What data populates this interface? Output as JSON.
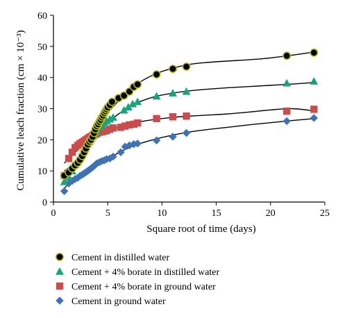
{
  "chart_data": {
    "type": "scatter",
    "title": "",
    "xlabel": "Square root of time (days)",
    "ylabel": "Cumulative leach fraction (cm × 10⁻³)",
    "xlim": [
      0,
      25
    ],
    "ylim": [
      0,
      60
    ],
    "x_ticks": [
      "0",
      "5",
      "10",
      "15",
      "20",
      "25"
    ],
    "y_ticks": [
      "0",
      "10",
      "20",
      "30",
      "40",
      "50",
      "60"
    ],
    "grid": false,
    "legend_position": "bottom",
    "series": [
      {
        "name": "Cement in distilled water",
        "marker": "circle",
        "color": "#000000",
        "edge_color": "#b5bd1f",
        "x": [
          1.0,
          1.41,
          1.73,
          2.0,
          2.24,
          2.45,
          2.65,
          2.83,
          3.0,
          3.16,
          3.32,
          3.46,
          3.61,
          3.74,
          3.87,
          4.0,
          4.12,
          4.24,
          4.36,
          4.47,
          4.58,
          4.69,
          4.8,
          4.9,
          5.0,
          5.2,
          5.4,
          6.0,
          6.5,
          7.0,
          7.4,
          7.75,
          9.5,
          11.0,
          12.25,
          21.5,
          24.0
        ],
        "y": [
          8.5,
          9.5,
          10.8,
          11.8,
          12.6,
          13.6,
          14.8,
          16.0,
          17.2,
          18.5,
          19.4,
          20.0,
          21.0,
          22.2,
          23.4,
          24.4,
          25.0,
          25.8,
          26.4,
          27.2,
          27.8,
          28.6,
          29.2,
          29.8,
          30.4,
          31.2,
          32.2,
          33.4,
          34.2,
          35.5,
          37.0,
          37.8,
          41.0,
          42.8,
          43.5,
          47.0,
          48.0
        ]
      },
      {
        "name": "Cement + 4% borate in distilled water",
        "marker": "triangle",
        "color": "#1aa37a",
        "x": [
          1.0,
          1.41,
          1.73,
          2.0,
          2.24,
          2.45,
          2.65,
          2.83,
          3.0,
          3.16,
          3.32,
          3.46,
          3.61,
          3.74,
          3.87,
          4.0,
          4.24,
          4.47,
          4.69,
          4.9,
          5.2,
          5.5,
          6.5,
          6.9,
          7.3,
          7.75,
          9.5,
          11.0,
          12.25,
          21.5,
          24.0
        ],
        "y": [
          6.5,
          8.0,
          10.0,
          12.0,
          13.2,
          14.5,
          15.8,
          16.8,
          17.8,
          18.6,
          19.4,
          20.2,
          21.0,
          21.8,
          22.4,
          23.0,
          24.0,
          24.8,
          25.4,
          26.0,
          26.6,
          27.2,
          29.5,
          30.5,
          31.5,
          32.2,
          34.0,
          35.0,
          35.5,
          38.2,
          38.8
        ]
      },
      {
        "name": "Cement + 4% borate in ground water",
        "marker": "square",
        "color": "#cc4b4b",
        "x": [
          1.0,
          1.41,
          1.73,
          2.0,
          2.24,
          2.45,
          2.65,
          2.83,
          3.0,
          3.16,
          3.32,
          3.46,
          3.61,
          3.74,
          3.87,
          4.0,
          4.24,
          4.47,
          4.69,
          4.9,
          5.2,
          5.5,
          6.2,
          6.6,
          7.0,
          7.4,
          7.75,
          9.5,
          11.0,
          12.25,
          21.5,
          24.0
        ],
        "y": [
          8.5,
          14.0,
          16.0,
          17.5,
          18.2,
          18.8,
          19.2,
          19.6,
          20.0,
          20.4,
          20.8,
          21.0,
          21.4,
          21.6,
          21.8,
          22.0,
          22.4,
          22.6,
          22.8,
          23.0,
          23.4,
          23.8,
          24.0,
          24.4,
          24.8,
          25.0,
          25.4,
          26.8,
          27.4,
          27.6,
          29.2,
          29.8
        ]
      },
      {
        "name": "Cement in ground water",
        "marker": "diamond",
        "color": "#3f72b5",
        "x": [
          1.0,
          1.41,
          1.73,
          2.0,
          2.24,
          2.45,
          2.65,
          2.83,
          3.0,
          3.16,
          3.32,
          3.46,
          3.61,
          3.74,
          3.87,
          4.0,
          4.24,
          4.47,
          4.69,
          4.9,
          5.2,
          5.5,
          6.2,
          6.6,
          7.0,
          7.4,
          7.75,
          9.5,
          11.0,
          12.25,
          21.5,
          24.0
        ],
        "y": [
          3.5,
          6.0,
          6.8,
          7.4,
          7.8,
          8.4,
          8.8,
          9.2,
          9.6,
          10.0,
          10.4,
          10.8,
          11.2,
          11.6,
          12.0,
          12.4,
          12.8,
          13.2,
          13.4,
          13.8,
          14.0,
          14.6,
          16.0,
          17.8,
          18.2,
          18.6,
          18.8,
          19.8,
          21.0,
          22.2,
          26.0,
          27.0
        ]
      }
    ],
    "fit_curves": [
      {
        "color": "#000000",
        "x": [
          1.0,
          2.0,
          3.0,
          4.0,
          5.0,
          6.0,
          7.0,
          8.0,
          9.5,
          11.0,
          12.5,
          14.0,
          16.0,
          18.0,
          20.0,
          22.0,
          24.0
        ],
        "y": [
          10.0,
          12.8,
          17.5,
          23.5,
          28.5,
          32.5,
          35.8,
          38.6,
          41.3,
          43.0,
          44.2,
          44.8,
          45.3,
          45.7,
          46.3,
          47.2,
          48.2
        ]
      },
      {
        "color": "#000000",
        "x": [
          1.0,
          2.0,
          3.0,
          4.0,
          5.0,
          6.0,
          7.0,
          8.0,
          9.5,
          11.0,
          12.5,
          14.0,
          16.0,
          18.0,
          20.0,
          22.0,
          24.0
        ],
        "y": [
          6.0,
          11.8,
          17.5,
          22.2,
          25.5,
          28.3,
          30.5,
          32.3,
          34.0,
          35.0,
          35.7,
          36.2,
          36.7,
          37.1,
          37.5,
          37.9,
          38.4
        ]
      },
      {
        "color": "#000000",
        "x": [
          1.0,
          1.5,
          2.0,
          3.0,
          4.0,
          5.0,
          6.0,
          7.0,
          8.0,
          9.5,
          11.0,
          12.5,
          14.0,
          16.0,
          18.0,
          20.0,
          22.0,
          24.0
        ],
        "y": [
          12.5,
          14.3,
          16.0,
          19.2,
          21.3,
          22.8,
          24.0,
          25.0,
          25.8,
          26.6,
          27.2,
          27.6,
          27.9,
          28.3,
          28.9,
          29.6,
          30.0,
          29.3
        ]
      },
      {
        "color": "#000000",
        "x": [
          1.0,
          2.0,
          3.0,
          4.0,
          5.0,
          6.0,
          7.0,
          8.0,
          9.5,
          11.0,
          12.5,
          14.0,
          16.0,
          18.0,
          20.0,
          22.0,
          24.0
        ],
        "y": [
          4.5,
          7.5,
          9.5,
          11.8,
          13.8,
          15.8,
          17.5,
          18.8,
          20.3,
          21.5,
          22.5,
          23.2,
          24.0,
          24.8,
          25.5,
          26.2,
          26.8
        ]
      }
    ]
  }
}
